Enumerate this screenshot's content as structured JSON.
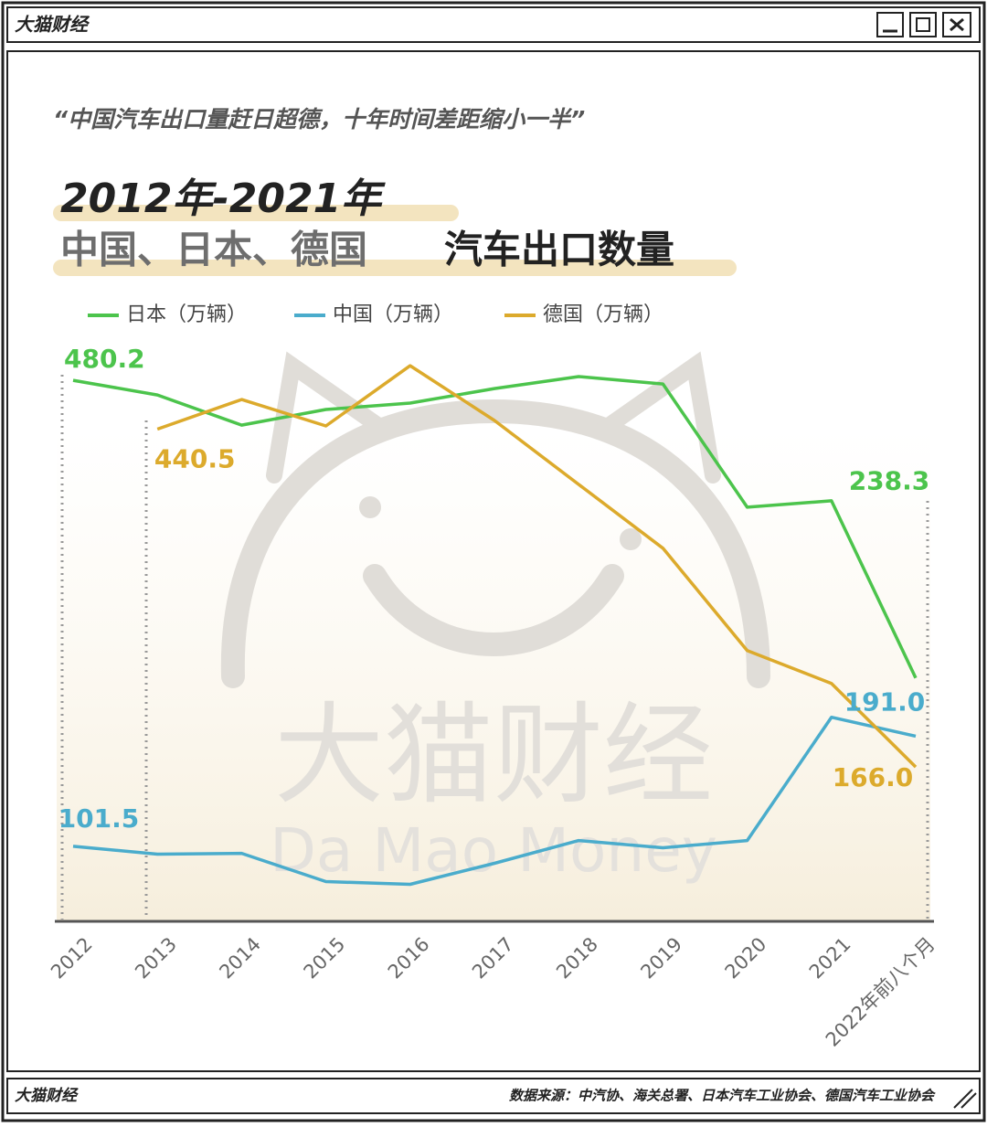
{
  "window": {
    "title": "大猫财经",
    "footer_brand": "大猫财经",
    "source": "数据来源：中汽协、海关总署、日本汽车工业协会、德国汽车工业协会"
  },
  "chart_data": {
    "type": "line",
    "subtitle": "“中国汽车出口量赶日超德，十年时间差距缩小一半”",
    "title_lines": [
      "2012年-2021年",
      "中国、日本、德国",
      "汽车出口数量"
    ],
    "watermark": [
      "大猫财经",
      "Da Mao Money"
    ],
    "categories": [
      "2012",
      "2013",
      "2014",
      "2015",
      "2016",
      "2017",
      "2018",
      "2019",
      "2020",
      "2021",
      "2022年前八个月"
    ],
    "ylim": [
      42,
      507
    ],
    "series": [
      {
        "name": "日本（万辆）",
        "color": "#4cc44c",
        "values": [
          480.2,
          468.3,
          443.8,
          456.5,
          461.7,
          473.5,
          483.2,
          477.2,
          377.1,
          382.3,
          238.3
        ],
        "value_labels": [
          "480.2",
          null,
          null,
          null,
          null,
          null,
          null,
          null,
          null,
          null,
          "238.3"
        ]
      },
      {
        "name": "中国（万辆）",
        "color": "#4aaccc",
        "values": [
          101.5,
          95.1,
          95.8,
          72.8,
          70.6,
          87.7,
          106.2,
          100.3,
          106.2,
          206.4,
          191.0
        ],
        "value_labels": [
          "101.5",
          null,
          null,
          null,
          null,
          null,
          null,
          null,
          null,
          null,
          "191.0"
        ]
      },
      {
        "name": "德国（万辆）",
        "color": "#dcaa2c",
        "values": [
          null,
          440.5,
          464.6,
          443.1,
          492.1,
          447.6,
          395.6,
          343.7,
          260.6,
          233.9,
          166.0
        ],
        "value_labels": [
          null,
          "440.5",
          null,
          null,
          null,
          null,
          null,
          null,
          null,
          null,
          "166.0"
        ]
      }
    ]
  }
}
